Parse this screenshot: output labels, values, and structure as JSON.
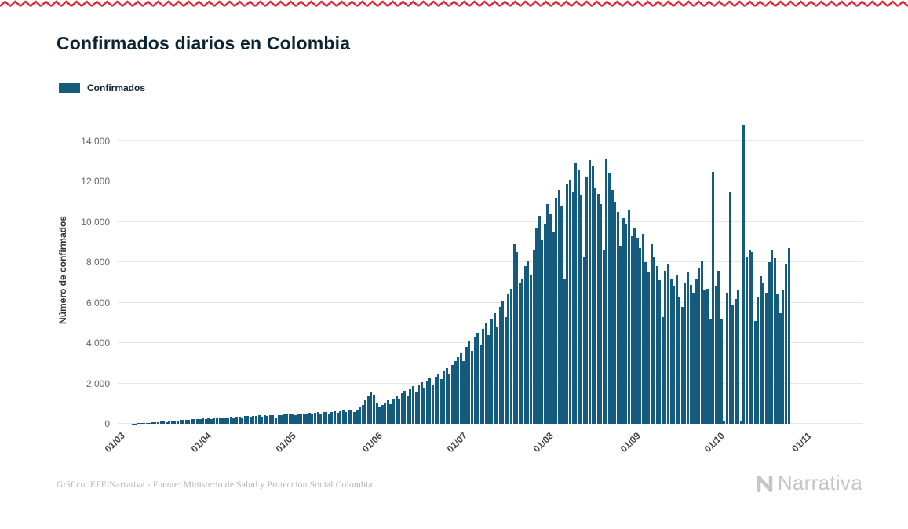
{
  "title": "Confirmados diarios en Colombia",
  "top_border_color": "#e4212e",
  "legend": {
    "label": "Confirmados",
    "swatch_color": "#145b7d"
  },
  "footer": {
    "credit": "Gráfico: EFE/Narrativa - Fuente: Ministerio de Salud y Protección Social Colombia",
    "brand": "Narrativa"
  },
  "chart_data": {
    "type": "bar",
    "title": "Confirmados diarios en Colombia",
    "xlabel": "",
    "ylabel": "Número de confirmados",
    "ylim": [
      0,
      14000
    ],
    "grid": true,
    "legend_position": "top-left",
    "bar_color": "#145b7d",
    "gridline_color": "#e6e6e6",
    "y_ticks": [
      {
        "value": 0,
        "label": "0"
      },
      {
        "value": 2000,
        "label": "2.000"
      },
      {
        "value": 4000,
        "label": "4.000"
      },
      {
        "value": 6000,
        "label": "6.000"
      },
      {
        "value": 8000,
        "label": "8.000"
      },
      {
        "value": 10000,
        "label": "10.000"
      },
      {
        "value": 12000,
        "label": "12.000"
      },
      {
        "value": 14000,
        "label": "14.000"
      }
    ],
    "x_ticks": [
      {
        "index": 0,
        "label": "01/03"
      },
      {
        "index": 31,
        "label": "01/04"
      },
      {
        "index": 61,
        "label": "01/05"
      },
      {
        "index": 92,
        "label": "01/06"
      },
      {
        "index": 122,
        "label": "01/07"
      },
      {
        "index": 153,
        "label": "01/08"
      },
      {
        "index": 184,
        "label": "01/09"
      },
      {
        "index": 214,
        "label": "01/10"
      },
      {
        "index": 245,
        "label": "01/11"
      }
    ],
    "total_slots": 266,
    "series": [
      {
        "name": "Confirmados",
        "values": [
          2,
          0,
          1,
          0,
          3,
          9,
          14,
          22,
          34,
          45,
          57,
          34,
          66,
          79,
          94,
          102,
          110,
          92,
          128,
          145,
          160,
          142,
          176,
          188,
          210,
          196,
          223,
          240,
          218,
          252,
          265,
          248,
          270,
          230,
          285,
          300,
          262,
          315,
          330,
          290,
          345,
          320,
          352,
          365,
          310,
          378,
          390,
          340,
          402,
          376,
          410,
          352,
          420,
          398,
          430,
          412,
          260,
          445,
          430,
          458,
          470,
          455,
          482,
          430,
          498,
          510,
          460,
          525,
          540,
          478,
          552,
          565,
          500,
          578,
          590,
          525,
          602,
          615,
          548,
          630,
          645,
          570,
          660,
          676,
          598,
          720,
          800,
          950,
          1150,
          1400,
          1600,
          1450,
          1000,
          850,
          920,
          1050,
          1150,
          980,
          1250,
          1380,
          1200,
          1500,
          1620,
          1400,
          1750,
          1850,
          1600,
          1950,
          2050,
          1800,
          2150,
          2250,
          1950,
          2350,
          2500,
          2200,
          2600,
          2750,
          2450,
          2900,
          3100,
          3300,
          3500,
          3100,
          3800,
          4100,
          3600,
          4300,
          4500,
          3900,
          4700,
          5000,
          4400,
          5200,
          5500,
          4800,
          5800,
          6100,
          5300,
          6400,
          6700,
          8900,
          8500,
          7000,
          7200,
          7800,
          8100,
          7400,
          8600,
          9700,
          10300,
          9100,
          9900,
          10900,
          10400,
          9500,
          11200,
          11600,
          10800,
          7200,
          11900,
          12100,
          11500,
          12900,
          12600,
          11300,
          8300,
          12200,
          13050,
          12800,
          11700,
          11400,
          10900,
          8600,
          13100,
          12400,
          11600,
          11000,
          10500,
          8800,
          10200,
          9900,
          10600,
          9300,
          9700,
          9200,
          8700,
          9400,
          8000,
          7500,
          8900,
          8300,
          7800,
          7100,
          5300,
          7600,
          7900,
          7200,
          6800,
          7400,
          6300,
          5800,
          7000,
          7500,
          6900,
          6500,
          7200,
          7700,
          8100,
          6600,
          6700,
          5200,
          12470,
          6800,
          7600,
          5200,
          150,
          6500,
          11500,
          5900,
          6200,
          6600,
          100,
          14800,
          8300,
          8600,
          8500,
          5100,
          6300,
          7300,
          7000,
          6500,
          8000,
          8600,
          8200,
          6400,
          5500,
          6600,
          7900,
          8700
        ]
      }
    ]
  }
}
